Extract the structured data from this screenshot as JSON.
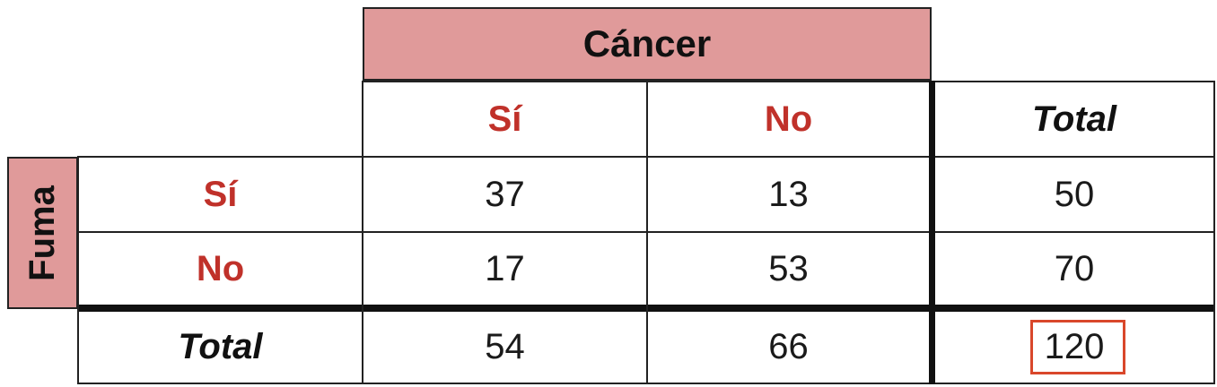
{
  "chart_data": {
    "type": "table",
    "column_group_label": "Cáncer",
    "row_group_label": "Fuma",
    "column_headers": [
      "Sí",
      "No",
      "Total"
    ],
    "row_headers": [
      "Sí",
      "No",
      "Total"
    ],
    "rows": [
      [
        "37",
        "13",
        "50"
      ],
      [
        "17",
        "53",
        "70"
      ],
      [
        "54",
        "66",
        "120"
      ]
    ],
    "highlighted_cell": "120",
    "colors": {
      "header_band": "#e09a9a",
      "category_text": "#c0312a",
      "highlight_border": "#d9472b"
    }
  }
}
